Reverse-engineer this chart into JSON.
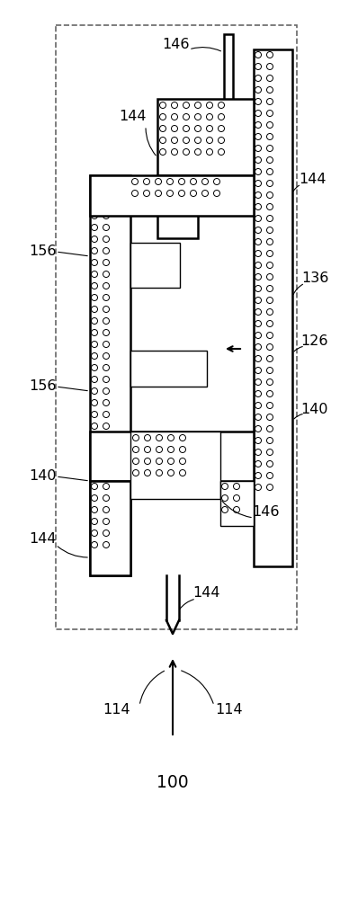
{
  "bg_color": "#ffffff",
  "line_color": "#000000",
  "dash_color": "#666666",
  "fig_width": 3.78,
  "fig_height": 10.0,
  "dpi": 100,
  "labels": {
    "146_top": "146",
    "144_top_left": "144",
    "156_upper": "156",
    "156_lower": "156",
    "144_right_upper": "144",
    "136": "136",
    "126": "126",
    "140_right": "140",
    "140_left": "140",
    "146_bottom": "146",
    "144_bottom_left": "144",
    "144_bottom_center": "144",
    "114_left": "114",
    "114_right": "114",
    "100": "100"
  }
}
